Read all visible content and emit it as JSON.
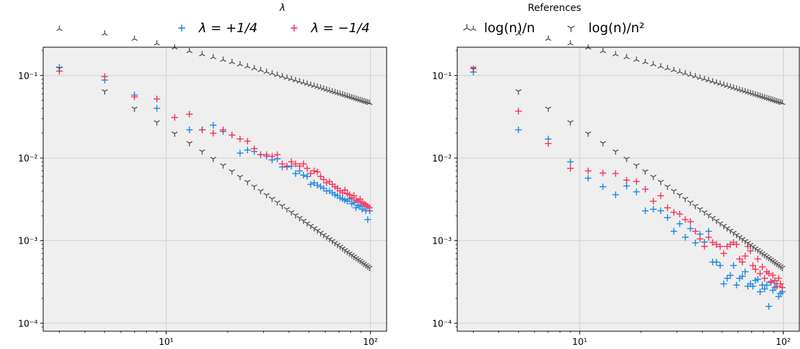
{
  "legends": {
    "lambda": {
      "title": "λ",
      "items": [
        {
          "name": "λ = +1/4",
          "color": "#1f88e5",
          "marker": "plus"
        },
        {
          "name": "λ = −1/4",
          "color": "#f5365c",
          "marker": "plus"
        }
      ]
    },
    "references": {
      "title": "References",
      "items": [
        {
          "name": "log(n)/n",
          "color": "#555555",
          "marker": "tri_up"
        },
        {
          "name": "log(n)/n²",
          "color": "#555555",
          "marker": "tri_down"
        }
      ]
    }
  },
  "chart_data": [
    {
      "type": "scatter",
      "xscale": "log",
      "yscale": "log",
      "xlim": [
        2.5,
        120
      ],
      "ylim": [
        8e-05,
        0.22
      ],
      "grid": true,
      "x_ticks": [
        {
          "value": 10,
          "label": "10¹"
        },
        {
          "value": 100,
          "label": "10²"
        }
      ],
      "y_ticks": [
        {
          "value": 0.1,
          "label": "10⁻¹"
        },
        {
          "value": 0.01,
          "label": "10⁻²"
        },
        {
          "value": 0.001,
          "label": "10⁻³"
        },
        {
          "value": 0.0001,
          "label": "10⁻⁴"
        }
      ],
      "series": [
        {
          "name": "λ = +1/4",
          "color": "#1f88e5",
          "marker": "plus",
          "x": [
            3,
            5,
            7,
            9,
            11,
            13,
            15,
            17,
            19,
            21,
            23,
            25,
            27,
            29,
            31,
            33,
            35,
            37,
            39,
            41,
            43,
            45,
            47,
            49,
            51,
            53,
            55,
            57,
            59,
            61,
            63,
            65,
            67,
            69,
            71,
            73,
            75,
            77,
            79,
            81,
            83,
            85,
            87,
            89,
            91,
            93,
            95,
            97,
            99
          ],
          "y": [
            0.125,
            0.088,
            0.058,
            0.04,
            0.031,
            0.022,
            0.022,
            0.025,
            0.021,
            0.019,
            0.0115,
            0.0125,
            0.012,
            0.011,
            0.0105,
            0.0095,
            0.0098,
            0.0078,
            0.0078,
            0.008,
            0.0065,
            0.007,
            0.0062,
            0.006,
            0.0048,
            0.005,
            0.0047,
            0.0045,
            0.0043,
            0.004,
            0.004,
            0.0038,
            0.0036,
            0.0035,
            0.0033,
            0.0032,
            0.0031,
            0.003,
            0.0032,
            0.0028,
            0.0029,
            0.0025,
            0.0027,
            0.0026,
            0.0024,
            0.0026,
            0.0023,
            0.0018,
            0.0023
          ]
        },
        {
          "name": "λ = −1/4",
          "color": "#f5365c",
          "marker": "plus",
          "x": [
            3,
            5,
            7,
            9,
            11,
            13,
            15,
            17,
            19,
            21,
            23,
            25,
            27,
            29,
            31,
            33,
            35,
            37,
            39,
            41,
            43,
            45,
            47,
            49,
            51,
            53,
            55,
            57,
            59,
            61,
            63,
            65,
            67,
            69,
            71,
            73,
            75,
            77,
            79,
            81,
            83,
            85,
            87,
            89,
            91,
            93,
            95,
            97,
            99
          ],
          "y": [
            0.113,
            0.097,
            0.055,
            0.052,
            0.031,
            0.034,
            0.022,
            0.02,
            0.022,
            0.019,
            0.017,
            0.016,
            0.013,
            0.011,
            0.011,
            0.0105,
            0.011,
            0.0085,
            0.008,
            0.009,
            0.0085,
            0.008,
            0.0085,
            0.0075,
            0.0065,
            0.007,
            0.0068,
            0.006,
            0.0055,
            0.005,
            0.0052,
            0.0048,
            0.0045,
            0.0043,
            0.004,
            0.0038,
            0.0041,
            0.0037,
            0.0036,
            0.0033,
            0.0035,
            0.0031,
            0.003,
            0.0032,
            0.0029,
            0.0028,
            0.0027,
            0.0026,
            0.0025
          ]
        },
        {
          "name": "log(n)/n",
          "color": "#555555",
          "marker": "tri_up",
          "formula": "log(n)/n",
          "x_from": 3,
          "x_to": 100,
          "x_step": 2
        },
        {
          "name": "log(n)/n²",
          "color": "#555555",
          "marker": "tri_down",
          "formula": "log(n)/n^2",
          "x_from": 3,
          "x_to": 100,
          "x_step": 2
        }
      ]
    },
    {
      "type": "scatter",
      "xscale": "log",
      "yscale": "log",
      "xlim": [
        2.5,
        120
      ],
      "ylim": [
        8e-05,
        0.22
      ],
      "grid": true,
      "x_ticks": [
        {
          "value": 10,
          "label": "10¹"
        },
        {
          "value": 100,
          "label": "10²"
        }
      ],
      "y_ticks": [
        {
          "value": 0.1,
          "label": "10⁻¹"
        },
        {
          "value": 0.01,
          "label": "10⁻²"
        },
        {
          "value": 0.001,
          "label": "10⁻³"
        },
        {
          "value": 0.0001,
          "label": "10⁻⁴"
        }
      ],
      "series": [
        {
          "name": "λ = +1/4",
          "color": "#1f88e5",
          "marker": "plus",
          "x": [
            3,
            5,
            7,
            9,
            11,
            13,
            15,
            17,
            19,
            21,
            23,
            25,
            27,
            29,
            31,
            33,
            35,
            37,
            39,
            41,
            43,
            45,
            47,
            49,
            51,
            53,
            55,
            57,
            59,
            61,
            63,
            65,
            67,
            69,
            71,
            73,
            75,
            77,
            79,
            81,
            83,
            85,
            87,
            89,
            91,
            93,
            95,
            97,
            99
          ],
          "y": [
            0.11,
            0.022,
            0.017,
            0.009,
            0.0057,
            0.0045,
            0.0036,
            0.0046,
            0.0039,
            0.0023,
            0.0024,
            0.0023,
            0.0019,
            0.0013,
            0.0016,
            0.0011,
            0.0014,
            0.00094,
            0.0012,
            0.00096,
            0.0013,
            0.00055,
            0.00055,
            0.0005,
            0.0003,
            0.00035,
            0.00038,
            0.0005,
            0.00029,
            0.00035,
            0.00037,
            0.00042,
            0.00028,
            0.0003,
            0.00028,
            0.00033,
            0.00034,
            0.00024,
            0.00029,
            0.00026,
            0.00029,
            0.00016,
            0.00031,
            0.00025,
            0.00027,
            0.0003,
            0.00021,
            0.00023,
            0.00024
          ]
        },
        {
          "name": "λ = −1/4",
          "color": "#f5365c",
          "marker": "plus",
          "x": [
            3,
            5,
            7,
            9,
            11,
            13,
            15,
            17,
            19,
            21,
            23,
            25,
            27,
            29,
            31,
            33,
            35,
            37,
            39,
            41,
            43,
            45,
            47,
            49,
            51,
            53,
            55,
            57,
            59,
            61,
            63,
            65,
            67,
            69,
            71,
            73,
            75,
            77,
            79,
            81,
            83,
            85,
            87,
            89,
            91,
            93,
            95,
            97,
            99
          ],
          "y": [
            0.121,
            0.037,
            0.015,
            0.0075,
            0.007,
            0.0066,
            0.0065,
            0.0054,
            0.0052,
            0.0042,
            0.003,
            0.0035,
            0.0025,
            0.0022,
            0.0021,
            0.0018,
            0.0017,
            0.0013,
            0.00105,
            0.00085,
            0.0011,
            0.00095,
            0.0009,
            0.00085,
            0.0007,
            0.00085,
            0.0009,
            0.00095,
            0.0009,
            0.0006,
            0.00055,
            0.00065,
            0.00085,
            0.00075,
            0.0005,
            0.00045,
            0.0006,
            0.0004,
            0.00048,
            0.00035,
            0.00042,
            0.0004,
            0.00032,
            0.00038,
            0.00033,
            0.00028,
            0.00035,
            0.0003,
            0.00027
          ]
        },
        {
          "name": "log(n)/n",
          "color": "#555555",
          "marker": "tri_up",
          "formula": "log(n)/n",
          "x_from": 3,
          "x_to": 100,
          "x_step": 2
        },
        {
          "name": "log(n)/n²",
          "color": "#555555",
          "marker": "tri_down",
          "formula": "log(n)/n^2",
          "x_from": 3,
          "x_to": 100,
          "x_step": 2
        }
      ]
    }
  ]
}
